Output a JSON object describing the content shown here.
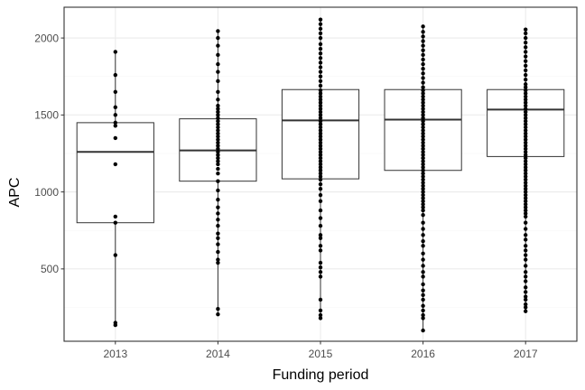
{
  "chart_data": {
    "type": "boxplot",
    "title": "",
    "xlabel": "Funding period",
    "ylabel": "APC",
    "categories": [
      "2013",
      "2014",
      "2015",
      "2016",
      "2017"
    ],
    "ylim": [
      30,
      2200
    ],
    "yticks": [
      500,
      1000,
      1500,
      2000
    ],
    "ytick_labels": [
      "500",
      "1000",
      "1500",
      "2000"
    ],
    "grid": true,
    "legend": "none",
    "colors": {
      "panel_border": "#333333",
      "grid_major": "#ebebeb",
      "grid_minor": "#f5f5f5",
      "box": "#333333",
      "point": "#000000"
    },
    "boxes": [
      {
        "category": "2013",
        "q1": 800,
        "median": 1260,
        "q3": 1450,
        "whisker_low": 130,
        "whisker_high": 1910
      },
      {
        "category": "2014",
        "q1": 1070,
        "median": 1270,
        "q3": 1475,
        "whisker_low": 200,
        "whisker_high": 2045
      },
      {
        "category": "2015",
        "q1": 1085,
        "median": 1465,
        "q3": 1665,
        "whisker_low": 175,
        "whisker_high": 2120
      },
      {
        "category": "2016",
        "q1": 1140,
        "median": 1470,
        "q3": 1665,
        "whisker_low": 100,
        "whisker_high": 2075
      },
      {
        "category": "2017",
        "q1": 1230,
        "median": 1535,
        "q3": 1665,
        "whisker_low": 225,
        "whisker_high": 2055
      }
    ],
    "points": [
      {
        "category": "2013",
        "values": [
          1910,
          1760,
          1650,
          1550,
          1500,
          1450,
          1430,
          1350,
          1180,
          840,
          800,
          590,
          150,
          135
        ]
      },
      {
        "category": "2014",
        "values": [
          2045,
          2000,
          1950,
          1890,
          1830,
          1780,
          1720,
          1650,
          1600,
          1560,
          1540,
          1520,
          1500,
          1480,
          1460,
          1440,
          1420,
          1400,
          1380,
          1360,
          1340,
          1320,
          1300,
          1280,
          1260,
          1240,
          1220,
          1200,
          1180,
          1150,
          1120,
          1070,
          1010,
          950,
          900,
          860,
          820,
          780,
          730,
          700,
          660,
          610,
          560,
          540,
          240,
          205
        ]
      },
      {
        "category": "2015",
        "values": [
          2120,
          2090,
          2060,
          2030,
          2000,
          1960,
          1930,
          1900,
          1870,
          1840,
          1810,
          1780,
          1750,
          1720,
          1690,
          1660,
          1640,
          1620,
          1600,
          1580,
          1560,
          1540,
          1520,
          1500,
          1480,
          1460,
          1440,
          1420,
          1400,
          1380,
          1360,
          1340,
          1320,
          1300,
          1280,
          1260,
          1240,
          1220,
          1200,
          1180,
          1160,
          1140,
          1120,
          1100,
          1080,
          1050,
          1020,
          980,
          940,
          880,
          830,
          780,
          720,
          700,
          650,
          620,
          540,
          510,
          480,
          450,
          300,
          230,
          200,
          180
        ]
      },
      {
        "category": "2016",
        "values": [
          2075,
          2040,
          2010,
          1980,
          1950,
          1920,
          1890,
          1860,
          1830,
          1800,
          1770,
          1740,
          1710,
          1680,
          1660,
          1640,
          1620,
          1600,
          1580,
          1560,
          1540,
          1520,
          1500,
          1480,
          1460,
          1440,
          1420,
          1400,
          1380,
          1360,
          1340,
          1320,
          1300,
          1280,
          1260,
          1240,
          1220,
          1200,
          1180,
          1160,
          1140,
          1120,
          1100,
          1080,
          1060,
          1040,
          1020,
          1000,
          980,
          960,
          940,
          920,
          900,
          880,
          850,
          800,
          760,
          720,
          680,
          650,
          600,
          560,
          520,
          480,
          450,
          400,
          360,
          330,
          300,
          260,
          230,
          200,
          180,
          100
        ]
      },
      {
        "category": "2017",
        "values": [
          2055,
          2030,
          2000,
          1970,
          1940,
          1910,
          1880,
          1850,
          1820,
          1790,
          1760,
          1730,
          1700,
          1680,
          1660,
          1640,
          1620,
          1600,
          1580,
          1560,
          1540,
          1520,
          1500,
          1480,
          1460,
          1440,
          1420,
          1400,
          1380,
          1360,
          1340,
          1320,
          1300,
          1280,
          1260,
          1240,
          1220,
          1200,
          1180,
          1160,
          1140,
          1120,
          1100,
          1080,
          1060,
          1040,
          1020,
          1000,
          980,
          960,
          940,
          920,
          900,
          880,
          860,
          840,
          800,
          760,
          720,
          690,
          650,
          620,
          590,
          560,
          520,
          480,
          450,
          420,
          380,
          350,
          320,
          300,
          270,
          250,
          225
        ]
      }
    ]
  }
}
